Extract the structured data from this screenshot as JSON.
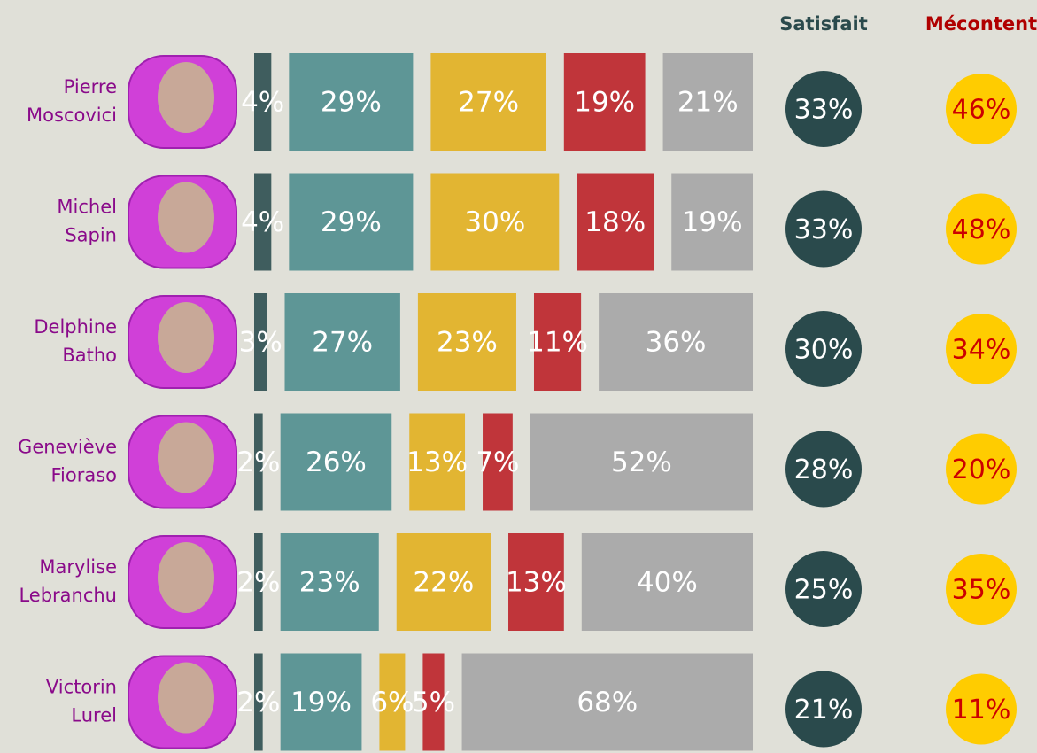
{
  "chart_data": {
    "type": "bar",
    "stacked": true,
    "orientation": "horizontal",
    "categories": [
      [
        "Pierre",
        "Moscovici"
      ],
      [
        "Michel",
        "Sapin"
      ],
      [
        "Delphine",
        "Batho"
      ],
      [
        "Geneviève",
        "Fioraso"
      ],
      [
        "Marylise",
        "Lebranchu"
      ],
      [
        "Victorin",
        "Lurel"
      ]
    ],
    "series": [
      {
        "color": "#3f5d5e",
        "values": [
          4,
          4,
          3,
          2,
          2,
          2
        ],
        "value_labels": [
          "4%",
          "4%",
          "3%",
          "2%",
          "2%",
          "2%"
        ]
      },
      {
        "color": "#5e9696",
        "values": [
          29,
          29,
          27,
          26,
          23,
          19
        ],
        "value_labels": [
          "29%",
          "29%",
          "27%",
          "26%",
          "23%",
          "19%"
        ]
      },
      {
        "color": "#e2b532",
        "values": [
          27,
          30,
          23,
          13,
          22,
          6
        ],
        "value_labels": [
          "27%",
          "30%",
          "23%",
          "13%",
          "22%",
          "6%"
        ]
      },
      {
        "color": "#c0353a",
        "values": [
          19,
          18,
          11,
          7,
          13,
          5
        ],
        "value_labels": [
          "19%",
          "18%",
          "11%",
          "7%",
          "13%",
          "5%"
        ]
      },
      {
        "color": "#ababab",
        "values": [
          21,
          19,
          36,
          52,
          40,
          68
        ],
        "value_labels": [
          "21%",
          "19%",
          "36%",
          "52%",
          "40%",
          "68%"
        ]
      }
    ],
    "columns": [
      {
        "name": "Satisfait",
        "color": "#2a4a4c",
        "text_color": "#ffffff",
        "name_color": "#2a4a4c",
        "values": [
          33,
          33,
          30,
          28,
          25,
          21
        ],
        "value_labels": [
          "33%",
          "33%",
          "30%",
          "28%",
          "25%",
          "21%"
        ]
      },
      {
        "name": "Mécontent",
        "color": "#ffcc00",
        "text_color": "#cc0000",
        "name_color": "#b00000",
        "values": [
          46,
          48,
          34,
          20,
          35,
          11
        ],
        "value_labels": [
          "46%",
          "48%",
          "34%",
          "20%",
          "35%",
          "11%"
        ]
      }
    ]
  }
}
